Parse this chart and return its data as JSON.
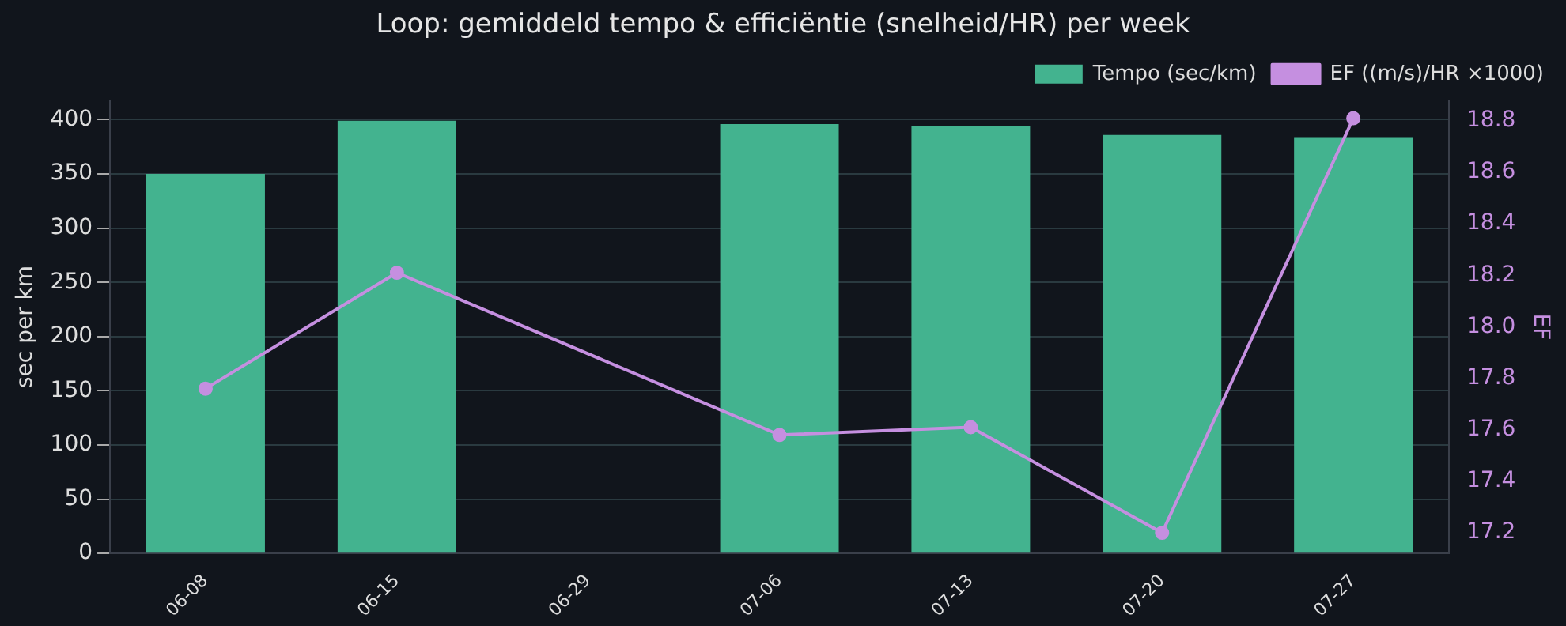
{
  "chart_data": {
    "type": "bar",
    "title": "Loop: gemiddeld tempo & efficiëntie (snelheid/HR) per week",
    "ylabel": "sec per km",
    "y2label": "EF",
    "categories": [
      "06-08",
      "06-15",
      "06-29",
      "07-06",
      "07-13",
      "07-20",
      "07-27"
    ],
    "series": [
      {
        "name": "Tempo (sec/km)",
        "color": "#43b38f",
        "values": [
          350,
          399,
          null,
          396,
          394,
          386,
          384
        ]
      },
      {
        "name": "EF ((m/s)/HR ×1000)",
        "type": "line",
        "axis": "y2",
        "color": "#c58fe0",
        "values": [
          17.76,
          18.21,
          null,
          17.58,
          17.61,
          17.2,
          18.81
        ]
      }
    ],
    "ylim": [
      0,
      418
    ],
    "yticks": [
      0,
      50,
      100,
      150,
      200,
      250,
      300,
      350,
      400
    ],
    "y2lim": [
      17.12,
      18.88
    ],
    "y2ticks": [
      {
        "value": 17.2,
        "label": "17.2"
      },
      {
        "value": 17.4,
        "label": "17.4"
      },
      {
        "value": 17.6,
        "label": "17.6"
      },
      {
        "value": 17.8,
        "label": "17.8"
      },
      {
        "value": 18,
        "label": "18.0"
      },
      {
        "value": 18.2,
        "label": "18.2"
      },
      {
        "value": 18.4,
        "label": "18.4"
      },
      {
        "value": 18.6,
        "label": "18.6"
      },
      {
        "value": 18.8,
        "label": "18.8"
      }
    ],
    "grid": "y",
    "legend": "top right",
    "marker": "circle"
  }
}
